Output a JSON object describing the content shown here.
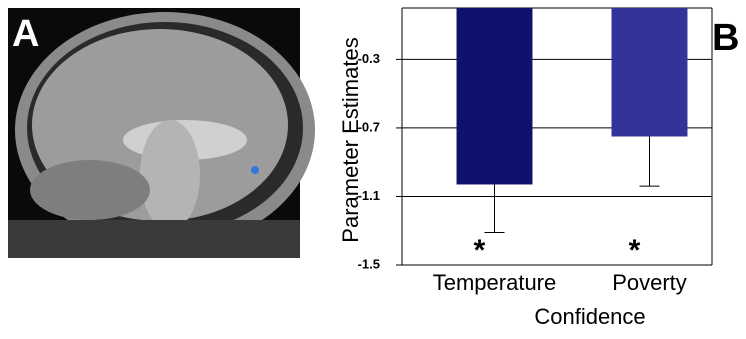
{
  "panel_labels": [
    "A",
    "B"
  ],
  "chart_data": {
    "type": "bar",
    "x_label": "Confidence",
    "y_label": "Parameter Estimates",
    "categories": [
      "Temperature",
      "Poverty"
    ],
    "values": [
      -1.03,
      -0.75
    ],
    "errors": [
      0.28,
      0.29
    ],
    "colors": [
      "#10106e",
      "#333399"
    ],
    "annotations": [
      "*",
      "*"
    ],
    "ylim": [
      -1.5,
      0
    ],
    "yticks": [
      -0.3,
      -0.7,
      -1.1,
      -1.5
    ],
    "grid": true
  }
}
